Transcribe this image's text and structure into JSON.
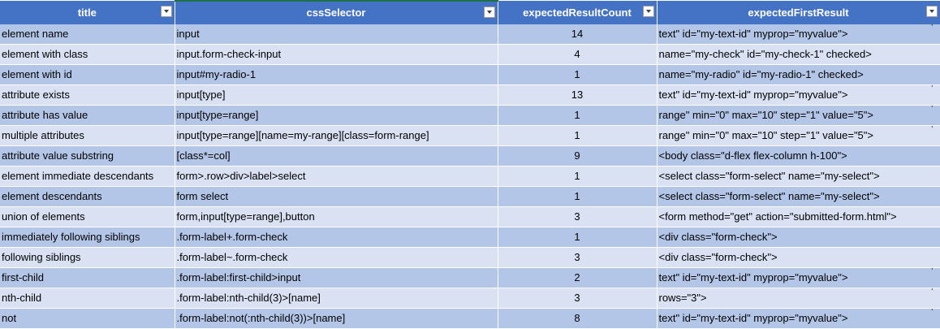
{
  "headers": [
    "title",
    "cssSelector",
    "expectedResultCount",
    "expectedFirstResult"
  ],
  "rows": [
    [
      "element name",
      "input",
      "14",
      "text\" id=\"my-text-id\" myprop=\"myvalue\">"
    ],
    [
      "element with class",
      "input.form-check-input",
      "4",
      "name=\"my-check\" id=\"my-check-1\" checked>"
    ],
    [
      "element with id",
      "input#my-radio-1",
      "1",
      "name=\"my-radio\" id=\"my-radio-1\" checked>"
    ],
    [
      "attribute exists",
      "input[type]",
      "13",
      "text\" id=\"my-text-id\" myprop=\"myvalue\">"
    ],
    [
      "attribute has value",
      "input[type=range]",
      "1",
      "range\" min=\"0\" max=\"10\" step=\"1\" value=\"5\">"
    ],
    [
      "multiple attributes",
      "input[type=range][name=my-range][class=form-range]",
      "1",
      "range\" min=\"0\" max=\"10\" step=\"1\" value=\"5\">"
    ],
    [
      "attribute value substring",
      "[class*=col]",
      "9",
      "<body class=\"d-flex flex-column h-100\">"
    ],
    [
      "element immediate descendants",
      "form>.row>div>label>select",
      "1",
      "<select class=\"form-select\" name=\"my-select\">"
    ],
    [
      "element descendants",
      "form select",
      "1",
      "<select class=\"form-select\" name=\"my-select\">"
    ],
    [
      "union of elements",
      "form,input[type=range],button",
      "3",
      "<form method=\"get\" action=\"submitted-form.html\">"
    ],
    [
      "immediately following siblings",
      ".form-label+.form-check",
      "1",
      "<div class=\"form-check\">"
    ],
    [
      "following siblings",
      ".form-label~.form-check",
      "3",
      "<div class=\"form-check\">"
    ],
    [
      "first-child",
      ".form-label:first-child>input",
      "2",
      "text\" id=\"my-text-id\" myprop=\"myvalue\">"
    ],
    [
      "nth-child",
      ".form-label:nth-child(3)>[name]",
      "3",
      "rows=\"3\">"
    ],
    [
      "not",
      ".form-label:not(:nth-child(3))>[name]",
      "8",
      "text\" id=\"my-text-id\" myprop=\"myvalue\">"
    ]
  ],
  "truncated_rows": [
    0,
    3,
    4,
    5,
    12,
    13,
    14
  ],
  "colors": {
    "header_bg": "#4472c4",
    "header_text": "#ffffff",
    "row_dark": "#b4c6e7",
    "row_light": "#d9e1f2",
    "selected_column_top": "#1e7145"
  },
  "icons": {
    "filter": "dropdown-filter-icon"
  }
}
